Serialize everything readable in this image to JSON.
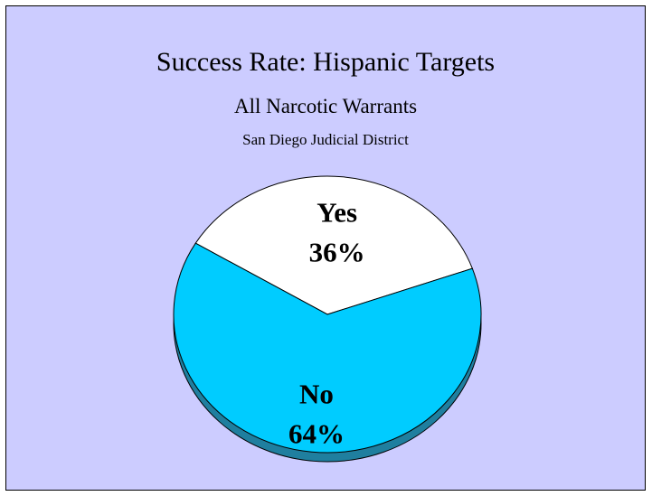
{
  "chart_data": {
    "type": "pie",
    "title": "Success Rate: Hispanic Targets",
    "subtitle": "All Narcotic Warrants",
    "subsubtitle": "San Diego Judicial District",
    "slices": [
      {
        "name": "Yes",
        "value": 36,
        "label": "36%",
        "color": "#ffffff"
      },
      {
        "name": "No",
        "value": 64,
        "label": "64%",
        "color": "#00ccff"
      }
    ],
    "shadow_color": "#1f7f9f",
    "edge_color": "#000000",
    "background_color": "#ccccff"
  }
}
